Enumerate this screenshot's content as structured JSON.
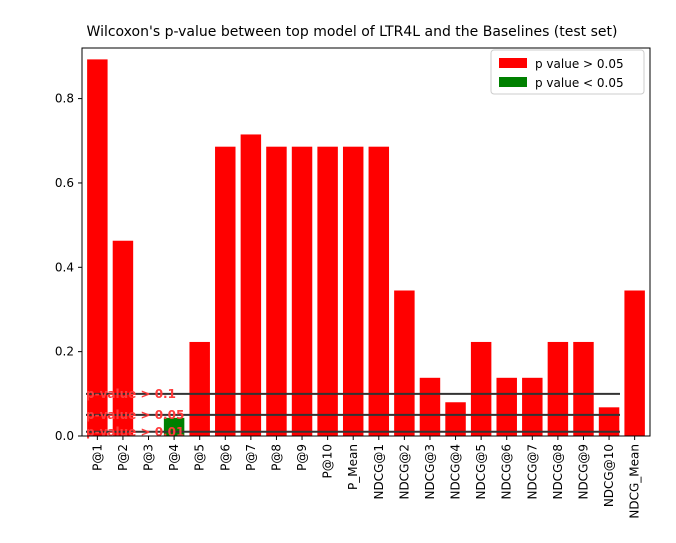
{
  "chart_data": {
    "type": "bar",
    "title": "Wilcoxon's p-value between top model of LTR4L and the Baselines (test set)",
    "xlabel": "",
    "ylabel": "",
    "ylim": [
      0,
      0.92
    ],
    "yticks": [
      "0.0",
      "0.2",
      "0.4",
      "0.6",
      "0.8"
    ],
    "grid": false,
    "legend_position": "top-right",
    "categories": [
      "P@1",
      "P@2",
      "P@3",
      "P@4",
      "P@5",
      "P@6",
      "P@7",
      "P@8",
      "P@9",
      "P@10",
      "P_Mean",
      "NDCG@1",
      "NDCG@2",
      "NDCG@3",
      "NDCG@4",
      "NDCG@5",
      "NDCG@6",
      "NDCG@7",
      "NDCG@8",
      "NDCG@9",
      "NDCG@10",
      "NDCG_Mean"
    ],
    "values": [
      0.893,
      0.463,
      0.0,
      0.043,
      0.223,
      0.686,
      0.715,
      0.686,
      0.686,
      0.686,
      0.686,
      0.686,
      0.345,
      0.138,
      0.08,
      0.223,
      0.138,
      0.138,
      0.223,
      0.223,
      0.068,
      0.345
    ],
    "significance_threshold": 0.05,
    "colors": {
      "above": "#ff0000",
      "below": "#008000",
      "threshold_line": "#333333",
      "threshold_label": "#ff3b3b"
    },
    "legend": [
      {
        "label": "p value > 0.05",
        "color": "#ff0000"
      },
      {
        "label": "p value < 0.05",
        "color": "#008000"
      }
    ],
    "thresholds": [
      {
        "value": 0.1,
        "label": "p-value > 0.1"
      },
      {
        "value": 0.05,
        "label": "p-value > 0.05"
      },
      {
        "value": 0.01,
        "label": "p-value > 0.01"
      }
    ]
  }
}
